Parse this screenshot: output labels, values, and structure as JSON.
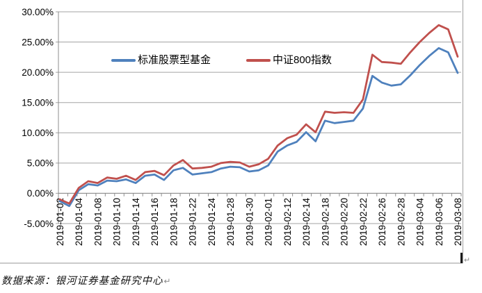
{
  "chart_data": {
    "type": "line",
    "title": "",
    "categories": [
      "2019-01-02",
      "2019-01-03",
      "2019-01-04",
      "2019-01-07",
      "2019-01-08",
      "2019-01-09",
      "2019-01-10",
      "2019-01-11",
      "2019-01-14",
      "2019-01-15",
      "2019-01-16",
      "2019-01-17",
      "2019-01-18",
      "2019-01-21",
      "2019-01-22",
      "2019-01-23",
      "2019-01-24",
      "2019-01-25",
      "2019-01-28",
      "2019-01-29",
      "2019-01-30",
      "2019-01-31",
      "2019-02-01",
      "2019-02-11",
      "2019-02-12",
      "2019-02-13",
      "2019-02-14",
      "2019-02-15",
      "2019-02-18",
      "2019-02-19",
      "2019-02-20",
      "2019-02-21",
      "2019-02-22",
      "2019-02-25",
      "2019-02-26",
      "2019-02-27",
      "2019-02-28",
      "2019-03-01",
      "2019-03-04",
      "2019-03-05",
      "2019-03-06",
      "2019-03-07",
      "2019-03-08"
    ],
    "label_every": 2,
    "x_tick_labels_shown": [
      "2019-01-02",
      "2019-01-04",
      "2019-01-08",
      "2019-01-10",
      "2019-01-14",
      "2019-01-16",
      "2019-01-18",
      "2019-01-22",
      "2019-01-24",
      "2019-01-28",
      "2019-01-30",
      "2019-02-01",
      "2019-02-12",
      "2019-02-14",
      "2019-02-18",
      "2019-02-20",
      "2019-02-22",
      "2019-02-26",
      "2019-02-28",
      "2019-03-04",
      "2019-03-06",
      "2019-03-08"
    ],
    "series": [
      {
        "name": "标准股票型基金",
        "color": "#4F81BD",
        "values": [
          -1.3,
          -2.1,
          0.5,
          1.5,
          1.3,
          2.1,
          2.0,
          2.3,
          1.7,
          2.9,
          3.1,
          2.2,
          3.8,
          4.2,
          3.1,
          3.3,
          3.5,
          4.1,
          4.4,
          4.3,
          3.6,
          3.8,
          4.6,
          6.9,
          7.9,
          8.5,
          10.1,
          8.6,
          12.0,
          11.6,
          11.8,
          12.0,
          14.0,
          19.4,
          18.3,
          17.8,
          18.0,
          19.5,
          21.2,
          22.7,
          24.0,
          23.3,
          19.9
        ]
      },
      {
        "name": "中证800指数",
        "color": "#C0504D",
        "values": [
          -1.0,
          -1.7,
          0.9,
          2.0,
          1.7,
          2.6,
          2.4,
          2.9,
          2.2,
          3.5,
          3.7,
          3.0,
          4.6,
          5.5,
          4.1,
          4.2,
          4.4,
          5.0,
          5.2,
          5.1,
          4.4,
          4.8,
          5.7,
          7.9,
          9.1,
          9.7,
          11.4,
          10.1,
          13.5,
          13.3,
          13.4,
          13.3,
          15.5,
          22.9,
          21.7,
          21.6,
          21.4,
          23.3,
          25.0,
          26.5,
          27.8,
          27.1,
          22.6
        ]
      }
    ],
    "ylim": [
      -5,
      30
    ],
    "y_ticks": [
      30,
      25,
      20,
      15,
      10,
      5,
      0,
      -5
    ],
    "y_tick_labels": [
      "30.00%",
      "25.00%",
      "20.00%",
      "15.00%",
      "10.00%",
      "5.00%",
      "0.00%",
      "-5.00%"
    ],
    "unit": "percent",
    "grid": true,
    "legend_position": "top-center",
    "colors": {
      "gridline": "#A3A3A3",
      "axis": "#8C8C8C",
      "chart_border": "#ABABAB",
      "tick_text": "#000000"
    }
  },
  "footer": {
    "text": "数据来源：银河证券基金研究中心"
  },
  "artifacts": {
    "paragraph_mark": "↵"
  }
}
